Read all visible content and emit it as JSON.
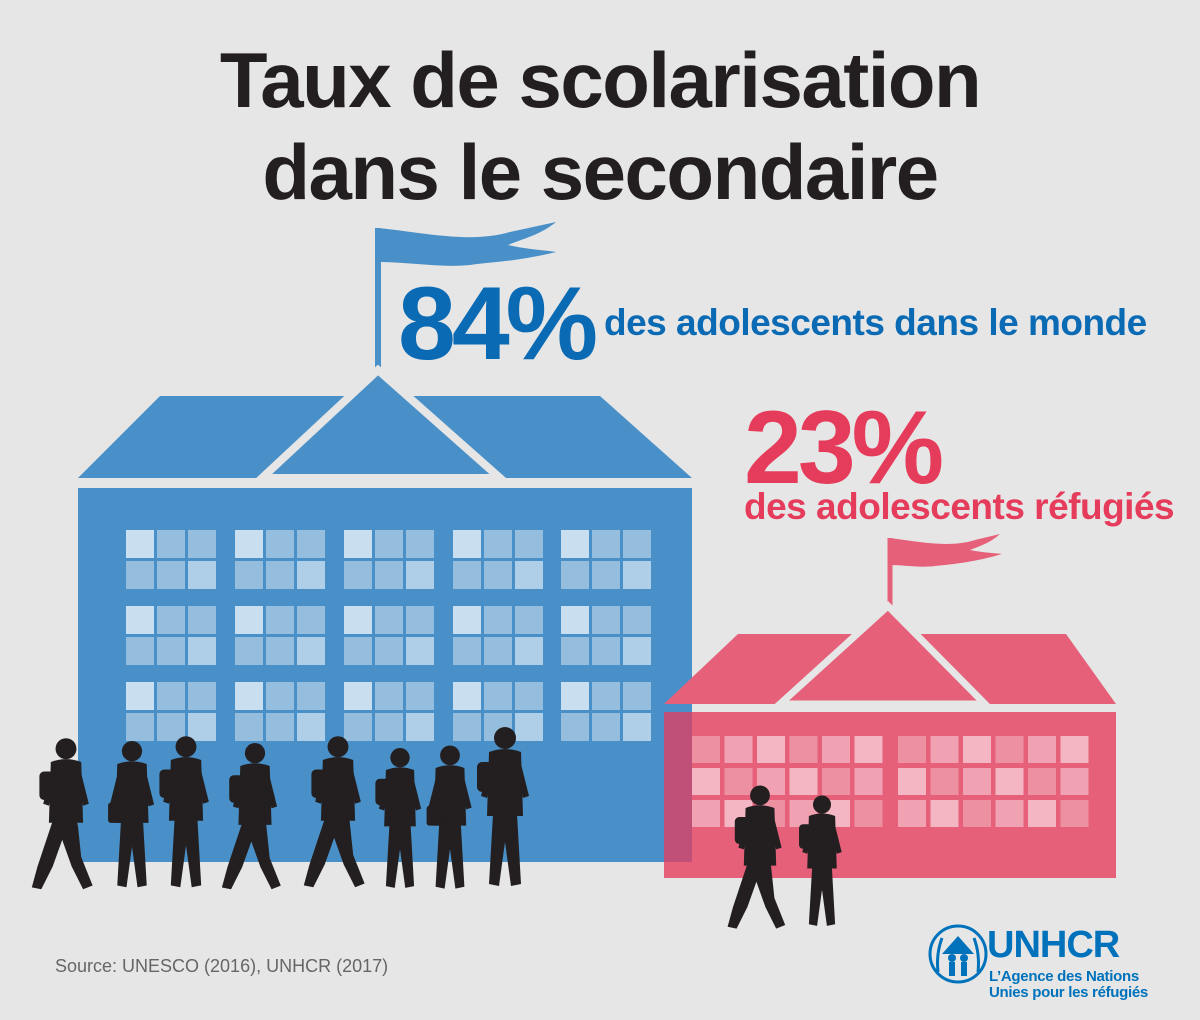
{
  "title": {
    "line1": "Taux de scolarisation",
    "line2": "dans le secondaire"
  },
  "stats": {
    "world": {
      "value": "84%",
      "label": "des adolescents dans le monde",
      "color": "#0a6ab4"
    },
    "refugees": {
      "value": "23%",
      "label": "des adolescents réfugiés",
      "color": "#e63c5c"
    }
  },
  "colors": {
    "blue_school": "#4a90c8",
    "red_school": "#e6607a",
    "silhouette": "#231f20",
    "background": "#e6e6e6"
  },
  "icons": [
    "school-building-icon",
    "flag-icon",
    "student-silhouette-icon",
    "unhcr-emblem-icon"
  ],
  "source": "Source: UNESCO (2016), UNHCR (2017)",
  "logo": {
    "name": "UNHCR",
    "line1": "L’Agence des Nations",
    "line2": "Unies pour les réfugiés"
  }
}
